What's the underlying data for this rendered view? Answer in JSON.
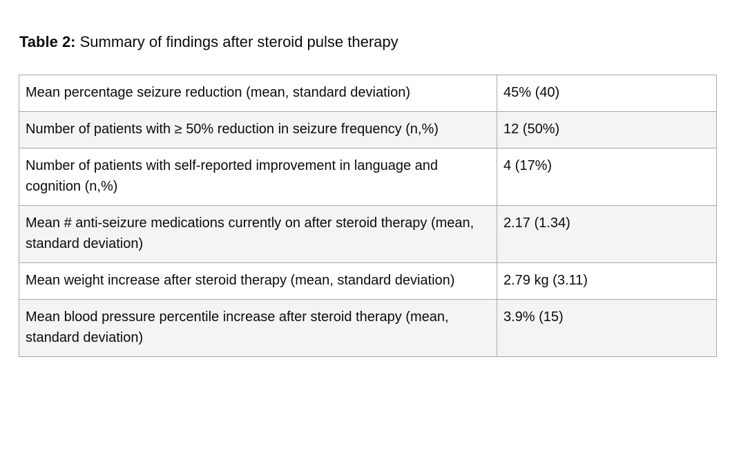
{
  "caption": {
    "label": "Table 2:",
    "text": " Summary of findings after steroid pulse therapy"
  },
  "table": {
    "rows": [
      {
        "label": "Mean percentage seizure reduction (mean, standard deviation)",
        "value": "45% (40)"
      },
      {
        "label": "Number of patients with ≥ 50% reduction in seizure frequency (n,%)",
        "value": "12 (50%)"
      },
      {
        "label": "Number of patients with self-reported improvement in language and cognition (n,%)",
        "value": "4 (17%)"
      },
      {
        "label": "Mean # anti-seizure medications currently on after steroid therapy (mean, standard deviation)",
        "value": "2.17 (1.34)"
      },
      {
        "label": "Mean weight increase after steroid therapy (mean, standard deviation)",
        "value": "2.79 kg (3.11)"
      },
      {
        "label": "Mean blood pressure percentile increase after steroid therapy (mean, standard deviation)",
        "value": "3.9% (15)"
      }
    ]
  },
  "colors": {
    "border": "#a8a8a8",
    "row_alt_background": "#f4f4f4",
    "text": "#0b0b0b",
    "page_background": "#ffffff"
  }
}
